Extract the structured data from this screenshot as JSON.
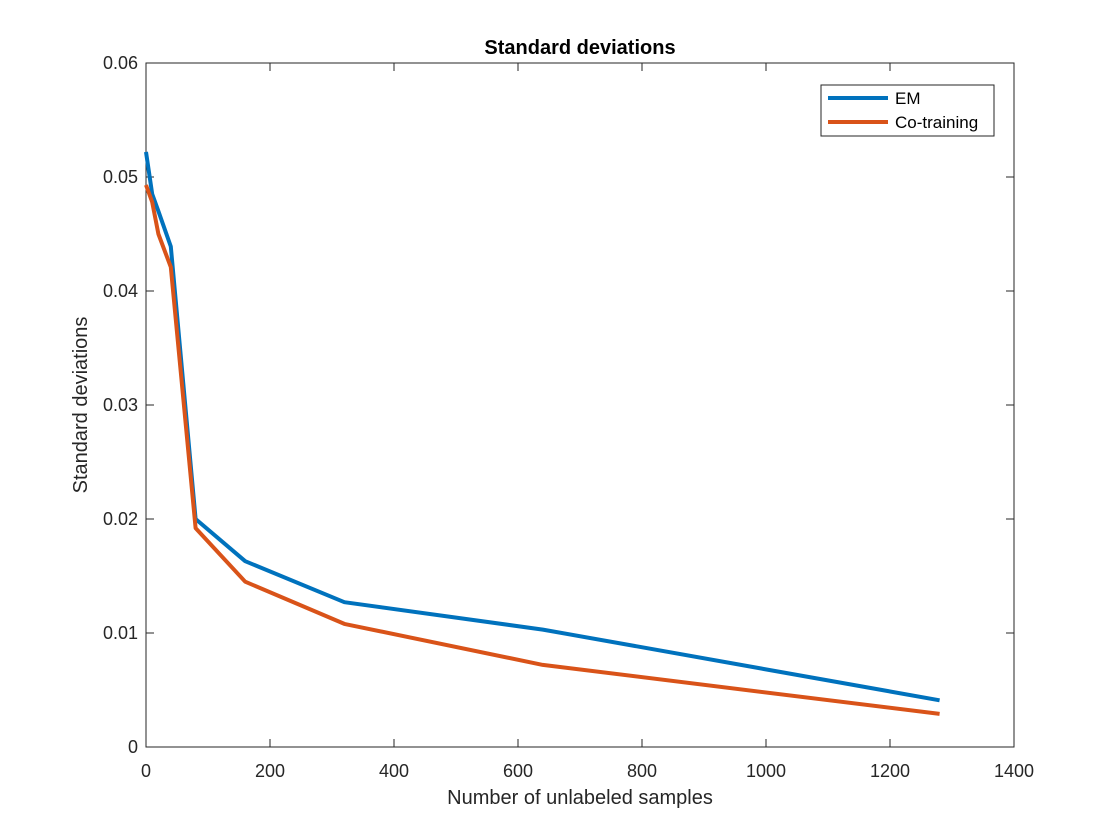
{
  "chart_data": {
    "type": "line",
    "title": "Standard deviations",
    "xlabel": "Number of unlabeled samples",
    "ylabel": "Standard deviations",
    "xlim": [
      0,
      1400
    ],
    "ylim": [
      0,
      0.06
    ],
    "xticks": [
      0,
      200,
      400,
      600,
      800,
      1000,
      1200,
      1400
    ],
    "yticks": [
      0,
      0.01,
      0.02,
      0.03,
      0.04,
      0.05,
      0.06
    ],
    "xtick_labels": [
      "0",
      "200",
      "400",
      "600",
      "800",
      "1000",
      "1200",
      "1400"
    ],
    "ytick_labels": [
      "0",
      "0.01",
      "0.02",
      "0.03",
      "0.04",
      "0.05",
      "0.06"
    ],
    "grid": false,
    "legend_position": "top-right",
    "series": [
      {
        "name": "EM",
        "color": "#0072BD",
        "x": [
          0,
          10,
          20,
          40,
          80,
          160,
          320,
          640,
          1280
        ],
        "y": [
          0.0522,
          0.0485,
          0.047,
          0.0439,
          0.02,
          0.0163,
          0.0127,
          0.0103,
          0.0041
        ]
      },
      {
        "name": "Co-training",
        "color": "#D95319",
        "x": [
          0,
          10,
          20,
          40,
          80,
          160,
          320,
          640,
          1280
        ],
        "y": [
          0.0493,
          0.0478,
          0.045,
          0.0421,
          0.0192,
          0.0145,
          0.0108,
          0.0072,
          0.0029
        ]
      }
    ]
  }
}
